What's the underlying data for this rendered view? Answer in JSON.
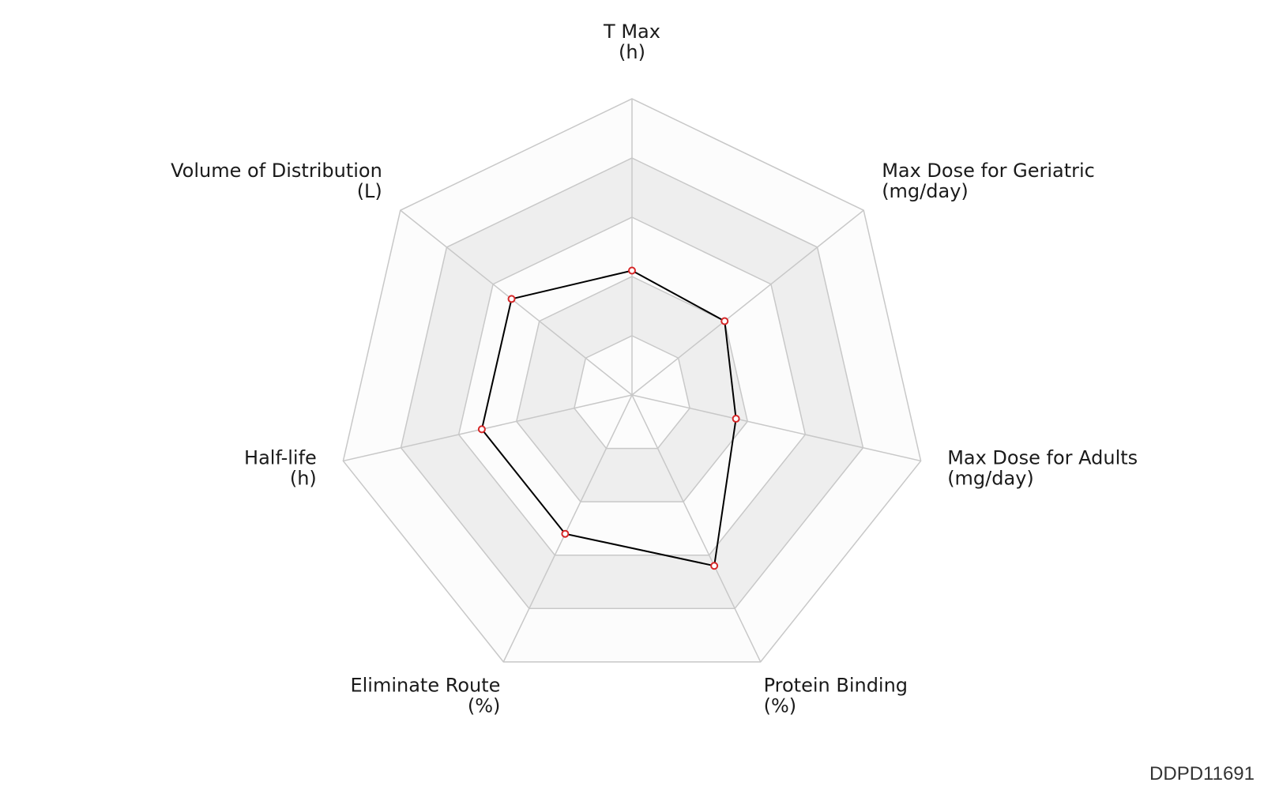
{
  "chart_data": {
    "type": "radar",
    "axes": [
      {
        "name": "T Max",
        "unit": "(h)"
      },
      {
        "name": "Max Dose for Geriatric",
        "unit": "(mg/day)"
      },
      {
        "name": "Max Dose for Adults",
        "unit": "(mg/day)"
      },
      {
        "name": "Protein Binding",
        "unit": "(%)"
      },
      {
        "name": "Eliminate Route",
        "unit": "(%)"
      },
      {
        "name": "Half-life",
        "unit": "(h)"
      },
      {
        "name": "Volume of Distribution",
        "unit": "(L)"
      }
    ],
    "rlim": [
      0,
      5
    ],
    "rings": 5,
    "series": [
      {
        "values": [
          2.1,
          2.0,
          1.8,
          3.2,
          2.6,
          2.6,
          2.6
        ]
      }
    ],
    "colors": {
      "ring_fill_light": "#fcfcfc",
      "ring_fill_dark": "#eeeeee",
      "grid": "#c8c8c8",
      "series_line": "#000000",
      "marker_edge": "#d62728",
      "marker_face": "#ffffff"
    },
    "grid": true,
    "legend": "none"
  },
  "footer_id": "DDPD11691"
}
